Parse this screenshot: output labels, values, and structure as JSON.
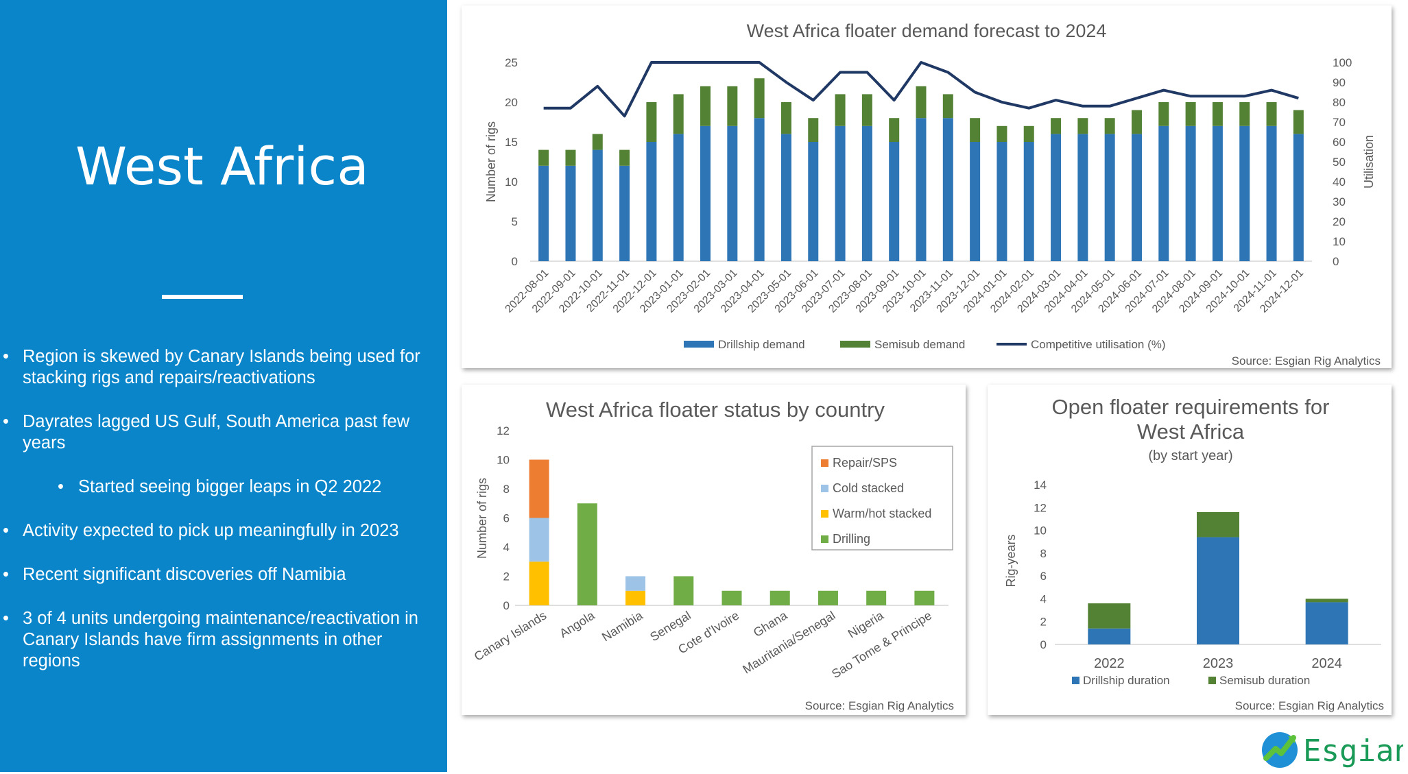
{
  "slide": {
    "title": "West Africa",
    "bullets": [
      {
        "text": "Region is skewed by Canary Islands being used for stacking rigs and repairs/reactivations",
        "level": 1
      },
      {
        "text": "Dayrates lagged US Gulf, South America past few years",
        "level": 1
      },
      {
        "text": "Started seeing bigger leaps in Q2 2022",
        "level": 2
      },
      {
        "text": "Activity expected to pick up meaningfully in 2023",
        "level": 1
      },
      {
        "text": "Recent significant discoveries off Namibia",
        "level": 1
      },
      {
        "text": "3 of 4 units undergoing maintenance/reactivation in Canary Islands have firm assignments in other regions",
        "level": 1
      }
    ],
    "logo_text": "Esgian",
    "colors": {
      "panel": "#0a85c9",
      "drillship": "#2e75b6",
      "semisub": "#548235",
      "utilisation": "#1f3864"
    }
  },
  "chart_data": [
    {
      "type": "bar",
      "stacked": true,
      "title": "West Africa floater demand forecast to 2024",
      "ylabel": "Number of rigs",
      "y2label": "Utilisation",
      "ylim": [
        0,
        25
      ],
      "yticks": [
        0,
        5,
        10,
        15,
        20,
        25
      ],
      "y2lim": [
        0,
        100
      ],
      "y2ticks": [
        0,
        10,
        20,
        30,
        40,
        50,
        60,
        70,
        80,
        90,
        100
      ],
      "legend_position": "bottom",
      "source": "Source: Esgian Rig Analytics",
      "categories": [
        "2022-08-01",
        "2022-09-01",
        "2022-10-01",
        "2022-11-01",
        "2022-12-01",
        "2023-01-01",
        "2023-02-01",
        "2023-03-01",
        "2023-04-01",
        "2023-05-01",
        "2023-06-01",
        "2023-07-01",
        "2023-08-01",
        "2023-09-01",
        "2023-10-01",
        "2023-11-01",
        "2023-12-01",
        "2024-01-01",
        "2024-02-01",
        "2024-03-01",
        "2024-04-01",
        "2024-05-01",
        "2024-06-01",
        "2024-07-01",
        "2024-08-01",
        "2024-09-01",
        "2024-10-01",
        "2024-11-01",
        "2024-12-01"
      ],
      "series": [
        {
          "name": "Drillship demand",
          "kind": "bar",
          "axis": "left",
          "color": "#2e75b6",
          "values": [
            12,
            12,
            14,
            12,
            15,
            16,
            17,
            17,
            18,
            16,
            15,
            17,
            17,
            15,
            18,
            18,
            15,
            15,
            15,
            16,
            16,
            16,
            16,
            17,
            17,
            17,
            17,
            17,
            16
          ]
        },
        {
          "name": "Semisub demand",
          "kind": "bar",
          "axis": "left",
          "color": "#548235",
          "values": [
            2,
            2,
            2,
            2,
            5,
            5,
            5,
            5,
            5,
            4,
            3,
            4,
            4,
            3,
            4,
            3,
            3,
            2,
            2,
            2,
            2,
            2,
            3,
            3,
            3,
            3,
            3,
            3,
            3
          ]
        },
        {
          "name": "Competitive utilisation (%)",
          "kind": "line",
          "axis": "right",
          "color": "#1f3864",
          "values": [
            77,
            77,
            88,
            73,
            100,
            100,
            100,
            100,
            100,
            90,
            81,
            95,
            95,
            81,
            100,
            95,
            85,
            80,
            77,
            81,
            78,
            78,
            82,
            86,
            83,
            83,
            83,
            86,
            82
          ]
        }
      ]
    },
    {
      "type": "bar",
      "stacked": true,
      "title": "West Africa floater status by country",
      "ylabel": "Number of rigs",
      "ylim": [
        0,
        12
      ],
      "yticks": [
        0,
        2,
        4,
        6,
        8,
        10,
        12
      ],
      "legend_position": "top-right",
      "source": "Source: Esgian Rig Analytics",
      "categories": [
        "Canary Islands",
        "Angola",
        "Namibia",
        "Senegal",
        "Cote d'Ivoire",
        "Ghana",
        "Mauritania/Senegal",
        "Nigeria",
        "Sao Tome & Principe"
      ],
      "series": [
        {
          "name": "Drilling",
          "color": "#70ad47",
          "values": [
            0,
            7,
            0,
            2,
            1,
            1,
            1,
            1,
            1
          ]
        },
        {
          "name": "Warm/hot stacked",
          "color": "#ffc000",
          "values": [
            3,
            0,
            1,
            0,
            0,
            0,
            0,
            0,
            0
          ]
        },
        {
          "name": "Cold stacked",
          "color": "#9dc3e6",
          "values": [
            3,
            0,
            1,
            0,
            0,
            0,
            0,
            0,
            0
          ]
        },
        {
          "name": "Repair/SPS",
          "color": "#ed7d31",
          "values": [
            4,
            0,
            0,
            0,
            0,
            0,
            0,
            0,
            0
          ]
        }
      ],
      "legend_order": [
        "Repair/SPS",
        "Cold stacked",
        "Warm/hot stacked",
        "Drilling"
      ]
    },
    {
      "type": "bar",
      "stacked": true,
      "title": "Open floater requirements for West Africa",
      "title_lines": [
        "Open floater requirements for",
        "West Africa"
      ],
      "subtitle": "(by start year)",
      "ylabel": "Rig-years",
      "ylim": [
        0,
        14
      ],
      "yticks": [
        0,
        2,
        4,
        6,
        8,
        10,
        12,
        14
      ],
      "legend_position": "bottom",
      "source": "Source: Esgian Rig Analytics",
      "categories": [
        "2022",
        "2023",
        "2024"
      ],
      "series": [
        {
          "name": "Drillship duration",
          "color": "#2e75b6",
          "values": [
            1.4,
            9.4,
            3.7
          ]
        },
        {
          "name": "Semisub duration",
          "color": "#548235",
          "values": [
            2.2,
            2.2,
            0.3
          ]
        }
      ]
    }
  ]
}
